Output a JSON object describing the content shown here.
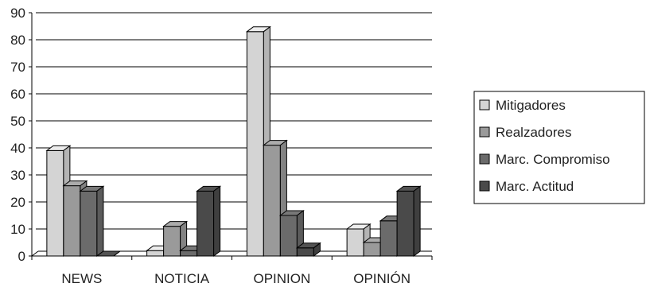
{
  "chart_data": {
    "type": "bar",
    "title": "",
    "xlabel": "",
    "ylabel": "",
    "ylim": [
      0,
      90
    ],
    "yticks": [
      0,
      10,
      20,
      30,
      40,
      50,
      60,
      70,
      80,
      90
    ],
    "categories": [
      "NEWS",
      "NOTICIA",
      "OPINION",
      "OPINIÓN"
    ],
    "grid": true,
    "legend_position": "right",
    "style": "3d-clustered",
    "series": [
      {
        "name": "Mitigadores",
        "color": "#d4d4d4",
        "values": [
          39,
          2,
          83,
          10
        ]
      },
      {
        "name": "Realzadores",
        "color": "#9a9a9a",
        "values": [
          26,
          11,
          41,
          5
        ]
      },
      {
        "name": "Marc. Compromiso",
        "color": "#6b6b6b",
        "values": [
          24,
          2,
          15,
          13
        ]
      },
      {
        "name": "Marc. Actitud",
        "color": "#4a4a4a",
        "values": [
          0,
          24,
          3,
          24
        ]
      }
    ]
  }
}
